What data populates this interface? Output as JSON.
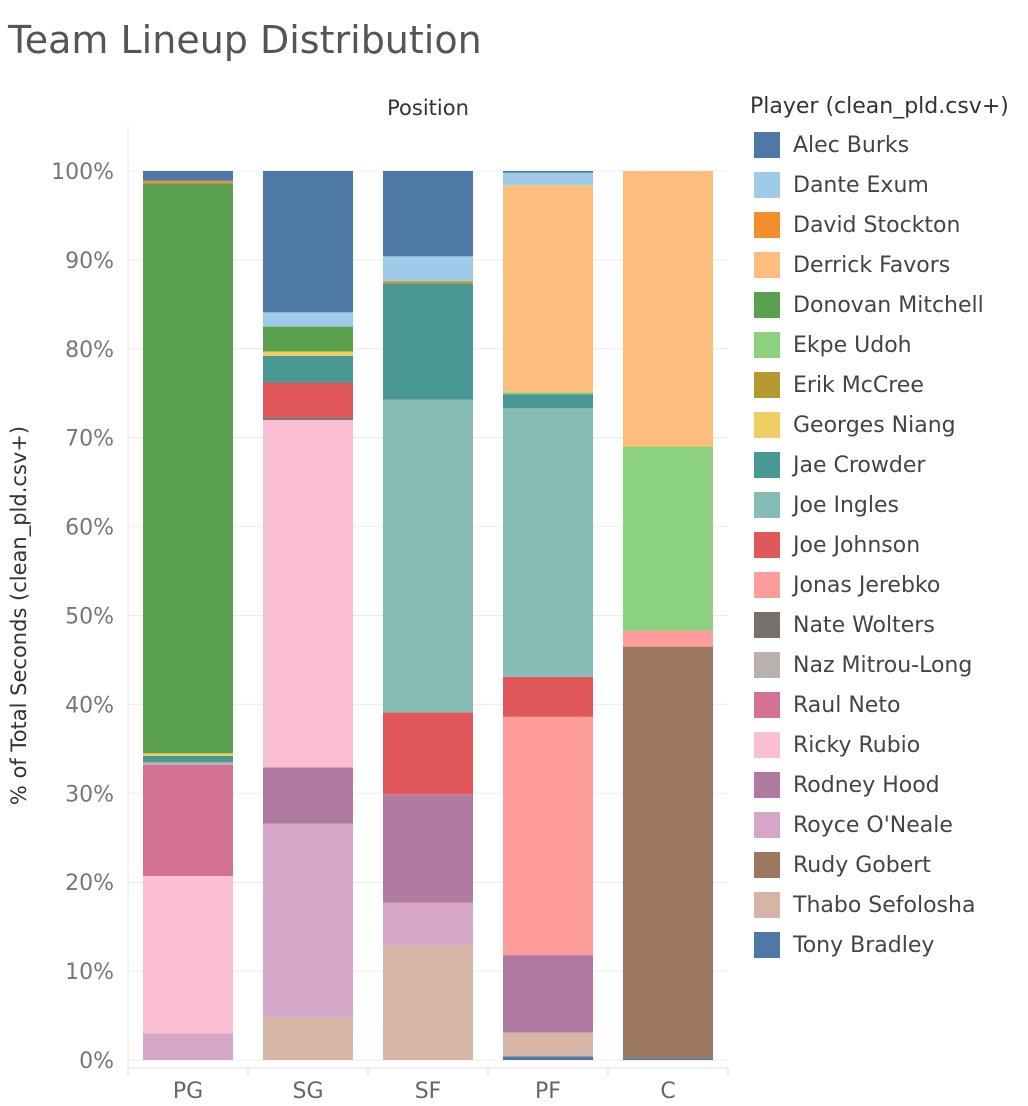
{
  "title": "Team Lineup Distribution",
  "legend_title": "Player (clean_pld.csv+)",
  "legend": [
    {
      "name": "Alec Burks",
      "color": "#4e79a7"
    },
    {
      "name": "Dante Exum",
      "color": "#a0cbe8"
    },
    {
      "name": "David Stockton",
      "color": "#f28e2b"
    },
    {
      "name": "Derrick Favors",
      "color": "#ffbe7d"
    },
    {
      "name": "Donovan Mitchell",
      "color": "#59a14f"
    },
    {
      "name": "Ekpe Udoh",
      "color": "#8cd17d"
    },
    {
      "name": "Erik McCree",
      "color": "#b6992d"
    },
    {
      "name": "Georges Niang",
      "color": "#f1ce63"
    },
    {
      "name": "Jae Crowder",
      "color": "#499894"
    },
    {
      "name": "Joe Ingles",
      "color": "#86bcb6"
    },
    {
      "name": "Joe Johnson",
      "color": "#e15759"
    },
    {
      "name": "Jonas Jerebko",
      "color": "#ff9d9a"
    },
    {
      "name": "Nate Wolters",
      "color": "#79706e"
    },
    {
      "name": "Naz Mitrou-Long",
      "color": "#bab0ac"
    },
    {
      "name": "Raul Neto",
      "color": "#d37295"
    },
    {
      "name": "Ricky Rubio",
      "color": "#fabfd2"
    },
    {
      "name": "Rodney Hood",
      "color": "#b07aa1"
    },
    {
      "name": "Royce O'Neale",
      "color": "#d4a6c8"
    },
    {
      "name": "Rudy Gobert",
      "color": "#9d7660"
    },
    {
      "name": "Thabo Sefolosha",
      "color": "#d7b5a6"
    },
    {
      "name": "Tony Bradley",
      "color": "#4e79a7"
    }
  ],
  "chart_data": {
    "type": "bar",
    "stacked": true,
    "title": "Team Lineup Distribution",
    "column_header": "Position",
    "ylabel": "% of Total Seconds (clean_pld.csv+)",
    "ylim": [
      0,
      100
    ],
    "yticks": [
      "0%",
      "10%",
      "20%",
      "30%",
      "40%",
      "50%",
      "60%",
      "70%",
      "80%",
      "90%",
      "100%"
    ],
    "categories": [
      "PG",
      "SG",
      "SF",
      "PF",
      "C"
    ],
    "grid": true,
    "legend_position": "right",
    "stacks": [
      {
        "category": "PG",
        "segments": [
          {
            "player": "Royce O'Neale",
            "value": 3.0
          },
          {
            "player": "Ricky Rubio",
            "value": 17.7
          },
          {
            "player": "Raul Neto",
            "value": 12.5
          },
          {
            "player": "Naz Mitrou-Long",
            "value": 0.3
          },
          {
            "player": "Jae Crowder",
            "value": 0.7
          },
          {
            "player": "Georges Niang",
            "value": 0.3
          },
          {
            "player": "Donovan Mitchell",
            "value": 64.1
          },
          {
            "player": "David Stockton",
            "value": 0.3
          },
          {
            "player": "Alec Burks",
            "value": 1.1
          }
        ]
      },
      {
        "category": "SG",
        "segments": [
          {
            "player": "Thabo Sefolosha",
            "value": 4.8
          },
          {
            "player": "Royce O'Neale",
            "value": 21.8
          },
          {
            "player": "Rodney Hood",
            "value": 6.3
          },
          {
            "player": "Ricky Rubio",
            "value": 39.1
          },
          {
            "player": "Nate Wolters",
            "value": 0.3
          },
          {
            "player": "Joe Johnson",
            "value": 3.9
          },
          {
            "player": "Jae Crowder",
            "value": 3.0
          },
          {
            "player": "Georges Niang",
            "value": 0.5
          },
          {
            "player": "Donovan Mitchell",
            "value": 2.8
          },
          {
            "player": "Dante Exum",
            "value": 1.6
          },
          {
            "player": "Alec Burks",
            "value": 15.9
          }
        ]
      },
      {
        "category": "SF",
        "segments": [
          {
            "player": "Thabo Sefolosha",
            "value": 12.9
          },
          {
            "player": "Royce O'Neale",
            "value": 4.8
          },
          {
            "player": "Rodney Hood",
            "value": 12.2
          },
          {
            "player": "Joe Johnson",
            "value": 9.2
          },
          {
            "player": "Joe Ingles",
            "value": 35.2
          },
          {
            "player": "Jae Crowder",
            "value": 13.0
          },
          {
            "player": "Erik McCree",
            "value": 0.3
          },
          {
            "player": "Dante Exum",
            "value": 2.8
          },
          {
            "player": "Alec Burks",
            "value": 9.6
          }
        ]
      },
      {
        "category": "PF",
        "segments": [
          {
            "player": "Tony Bradley",
            "value": 0.4
          },
          {
            "player": "Thabo Sefolosha",
            "value": 2.7
          },
          {
            "player": "Rodney Hood",
            "value": 8.7
          },
          {
            "player": "Jonas Jerebko",
            "value": 26.8
          },
          {
            "player": "Joe Johnson",
            "value": 4.5
          },
          {
            "player": "Joe Ingles",
            "value": 30.2
          },
          {
            "player": "Jae Crowder",
            "value": 1.6
          },
          {
            "player": "Ekpe Udoh",
            "value": 0.2
          },
          {
            "player": "Derrick Favors",
            "value": 23.3
          },
          {
            "player": "Dante Exum",
            "value": 1.4
          },
          {
            "player": "Alec Burks",
            "value": 0.2
          }
        ]
      },
      {
        "category": "C",
        "segments": [
          {
            "player": "Tony Bradley",
            "value": 0.2
          },
          {
            "player": "Rudy Gobert",
            "value": 46.3
          },
          {
            "player": "Jonas Jerebko",
            "value": 1.8
          },
          {
            "player": "Ekpe Udoh",
            "value": 20.7
          },
          {
            "player": "Derrick Favors",
            "value": 31.0
          }
        ]
      }
    ]
  }
}
